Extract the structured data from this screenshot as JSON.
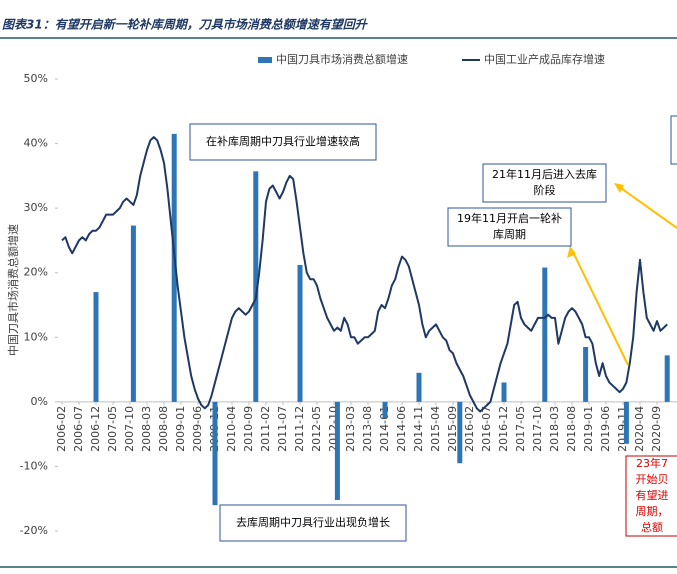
{
  "chart_data": {
    "type": "bar-line",
    "title": "图表31：有望开启新一轮补库周期，刀具市场消费总额增速有望回升",
    "y_label": "中国刀具市场消费总额增速",
    "categories": [
      "2006-02",
      null,
      null,
      null,
      null,
      "2006-07",
      null,
      null,
      null,
      null,
      "2006-12",
      null,
      null,
      null,
      null,
      "2007-05",
      null,
      null,
      null,
      null,
      "2007-10",
      null,
      null,
      null,
      null,
      "2008-03",
      null,
      null,
      null,
      null,
      "2008-08",
      null,
      null,
      null,
      null,
      "2009-01",
      null,
      null,
      null,
      null,
      "2009-06",
      null,
      null,
      null,
      null,
      "2009-11",
      null,
      null,
      null,
      null,
      "2010-04",
      null,
      null,
      null,
      null,
      "2010-09",
      null,
      null,
      null,
      null,
      "2011-02",
      null,
      null,
      null,
      null,
      "2011-07",
      null,
      null,
      null,
      null,
      "2011-12",
      null,
      null,
      null,
      null,
      "2012-05",
      null,
      null,
      null,
      null,
      "2012-10",
      null,
      null,
      null,
      null,
      "2013-03",
      null,
      null,
      null,
      null,
      "2013-08",
      null,
      null,
      null,
      null,
      "2014-01",
      null,
      null,
      null,
      null,
      "2014-06",
      null,
      null,
      null,
      null,
      "2014-11",
      null,
      null,
      null,
      null,
      "2015-04",
      null,
      null,
      null,
      null,
      "2015-09",
      null,
      null,
      null,
      null,
      "2016-02",
      null,
      null,
      null,
      null,
      "2016-07",
      null,
      null,
      null,
      null,
      "2016-12",
      null,
      null,
      null,
      null,
      "2017-05",
      null,
      null,
      null,
      null,
      "2017-10",
      null,
      null,
      null,
      null,
      "2018-03",
      null,
      null,
      null,
      null,
      "2018-08",
      null,
      null,
      null,
      null,
      "2019-01",
      null,
      null,
      null,
      null,
      "2019-06",
      null,
      null,
      null,
      null,
      "2019-11",
      null,
      null,
      null,
      null,
      "2020-04",
      null,
      null,
      null,
      null,
      "2020-09",
      null,
      null,
      null
    ],
    "series": [
      {
        "name": "中国刀具市场消费总额增速",
        "type": "bar",
        "color": "#2e75b6",
        "values": [
          null,
          null,
          null,
          null,
          null,
          null,
          null,
          null,
          null,
          null,
          17,
          null,
          null,
          null,
          null,
          null,
          null,
          null,
          null,
          null,
          null,
          27.3,
          null,
          null,
          null,
          null,
          null,
          null,
          null,
          null,
          null,
          null,
          null,
          41.5,
          null,
          null,
          null,
          null,
          null,
          null,
          null,
          null,
          null,
          null,
          null,
          -16,
          null,
          null,
          null,
          null,
          null,
          null,
          null,
          null,
          null,
          null,
          null,
          35.7,
          null,
          null,
          null,
          null,
          null,
          null,
          null,
          null,
          null,
          null,
          null,
          null,
          21.2,
          null,
          null,
          null,
          null,
          null,
          null,
          null,
          null,
          null,
          null,
          -15.2,
          null,
          null,
          null,
          null,
          null,
          null,
          null,
          null,
          null,
          null,
          null,
          null,
          null,
          -2.5,
          null,
          null,
          null,
          null,
          null,
          null,
          null,
          null,
          null,
          4.5,
          null,
          null,
          null,
          null,
          null,
          null,
          null,
          null,
          null,
          null,
          null,
          -9.5,
          null,
          null,
          null,
          null,
          null,
          null,
          null,
          null,
          null,
          null,
          null,
          null,
          3,
          null,
          null,
          null,
          null,
          null,
          null,
          null,
          null,
          null,
          null,
          null,
          20.8,
          null,
          null,
          null,
          null,
          null,
          null,
          null,
          null,
          null,
          null,
          null,
          8.5,
          null,
          null,
          null,
          null,
          null,
          null,
          null,
          null,
          null,
          null,
          null,
          -6.5,
          null,
          null,
          null,
          null,
          null,
          null,
          null,
          null,
          null,
          null,
          null,
          7.2
        ]
      },
      {
        "name": "中国工业产成品库存增速",
        "type": "line",
        "color": "#1f3864",
        "values": [
          25,
          25.5,
          24,
          23,
          24,
          25,
          25.5,
          25,
          26,
          26.5,
          26.5,
          27,
          28,
          29,
          29,
          29,
          29.5,
          30,
          31,
          31.5,
          31,
          30.5,
          32,
          35,
          37,
          39,
          40.5,
          41,
          40.5,
          39,
          37,
          33,
          28,
          23,
          18,
          14,
          10,
          7,
          4,
          2,
          0.5,
          -0.5,
          -1,
          -0.5,
          1,
          3,
          5,
          7,
          9,
          11,
          13,
          14,
          14.5,
          14,
          13.5,
          14,
          15,
          16,
          20,
          25,
          31,
          33,
          33.5,
          32.5,
          31.5,
          32.5,
          34,
          35,
          34.5,
          31,
          27,
          23,
          20,
          19,
          19,
          18,
          16,
          14.5,
          13,
          12,
          11,
          11.5,
          11,
          13,
          12,
          10,
          10,
          9,
          9.5,
          10,
          10,
          10.5,
          11,
          14,
          15,
          14.5,
          16,
          18,
          19,
          21,
          22.5,
          22,
          21,
          19,
          17,
          15,
          12,
          10,
          11,
          11.5,
          12,
          11,
          10,
          9.5,
          8,
          7.5,
          6,
          5,
          4,
          2.5,
          1,
          0,
          -1,
          -1.5,
          -1,
          -0.5,
          0,
          2,
          4,
          6,
          7.5,
          9,
          12,
          15,
          15.5,
          13,
          12,
          11.5,
          11,
          12,
          13,
          13,
          13,
          13.5,
          13,
          13,
          9,
          11,
          13,
          14,
          14.5,
          14,
          13,
          12,
          10,
          10,
          9,
          6,
          4,
          6,
          4,
          3,
          2.5,
          2,
          1.5,
          2,
          3,
          6,
          10,
          17,
          22,
          17,
          13,
          12,
          11,
          12.5,
          11,
          11.5,
          12
        ]
      }
    ],
    "ylim": [
      -20,
      50
    ],
    "yticks": [
      {
        "value": -20,
        "label": "-20%"
      },
      {
        "value": -10,
        "label": "-10%"
      },
      {
        "value": 0,
        "label": "0%"
      },
      {
        "value": 10,
        "label": "10%"
      },
      {
        "value": 20,
        "label": "20%"
      },
      {
        "value": 30,
        "label": "30%"
      },
      {
        "value": 40,
        "label": "40%"
      },
      {
        "value": 50,
        "label": "50%"
      }
    ],
    "annotations": [
      {
        "lines": [
          "在补库周期中刀具行业增速较高"
        ]
      },
      {
        "lines": [
          "去库周期中刀具行业出现负增长"
        ]
      },
      {
        "lines": [
          "21年11月后进入去库",
          "阶段"
        ]
      },
      {
        "lines": [
          "19年11月开启一轮补",
          "库周期"
        ]
      },
      {
        "lines": [
          "23年7",
          "开始贝",
          "有望进",
          "周期，",
          "总额"
        ]
      }
    ]
  }
}
